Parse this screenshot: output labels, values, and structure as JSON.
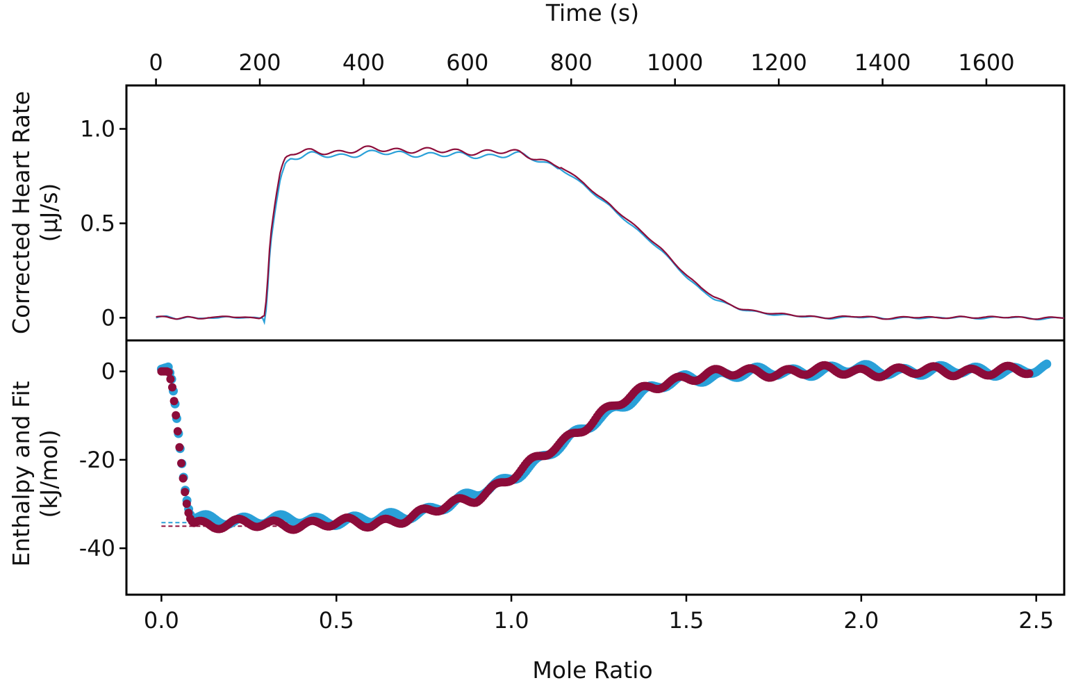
{
  "colors": {
    "series_a": "#2aa0d8",
    "series_b": "#8c0c3a",
    "axis": "#000000"
  },
  "chart_data": [
    {
      "type": "line",
      "panel": "top",
      "xlabel": "Time (s)",
      "ylabel": "Corrected Heart Rate",
      "ylabel_unit": "(µJ/s)",
      "x_axis_position": "top",
      "xlim": [
        -57,
        1750
      ],
      "ylim": [
        -0.12,
        1.23
      ],
      "xticks": [
        0,
        200,
        400,
        600,
        800,
        1000,
        1200,
        1400,
        1600
      ],
      "xtick_labels": [
        "0",
        "200",
        "400",
        "600",
        "800",
        "1000",
        "1200",
        "1400",
        "1600"
      ],
      "yticks": [
        0,
        0.5,
        1.0
      ],
      "ytick_labels": [
        "0",
        "0.5",
        "1.0"
      ],
      "grid": false,
      "series": [
        {
          "color": "#2aa0d8",
          "x": [
            0,
            20,
            40,
            60,
            80,
            100,
            120,
            140,
            160,
            180,
            200,
            205,
            210,
            215,
            220,
            230,
            240,
            250,
            260,
            280,
            300,
            350,
            400,
            450,
            500,
            550,
            600,
            650,
            700,
            730,
            750,
            775,
            800,
            825,
            850,
            875,
            900,
            925,
            950,
            975,
            1000,
            1025,
            1050,
            1075,
            1100,
            1125,
            1150,
            1175,
            1200,
            1250,
            1300,
            1350,
            1400,
            1450,
            1500,
            1550,
            1600,
            1650,
            1700,
            1750
          ],
          "y": [
            0,
            0.004,
            -0.006,
            0.002,
            -0.004,
            0.006,
            -0.002,
            0.004,
            0,
            -0.004,
            -0.002,
            0.003,
            -0.028,
            0.15,
            0.38,
            0.58,
            0.74,
            0.82,
            0.85,
            0.85,
            0.86,
            0.86,
            0.87,
            0.87,
            0.87,
            0.86,
            0.86,
            0.86,
            0.86,
            0.84,
            0.82,
            0.8,
            0.75,
            0.7,
            0.64,
            0.59,
            0.53,
            0.47,
            0.41,
            0.35,
            0.28,
            0.21,
            0.15,
            0.1,
            0.07,
            0.045,
            0.035,
            0.025,
            0.015,
            0.005,
            0,
            0.004,
            -0.004,
            0.002,
            -0.004,
            0.004,
            -0.002,
            0.002,
            -0.004,
            0
          ]
        },
        {
          "color": "#8c0c3a",
          "x": [
            0,
            20,
            40,
            60,
            80,
            100,
            120,
            140,
            160,
            180,
            200,
            205,
            210,
            215,
            220,
            230,
            240,
            250,
            260,
            280,
            300,
            350,
            400,
            450,
            500,
            550,
            600,
            650,
            700,
            730,
            750,
            775,
            800,
            825,
            850,
            875,
            900,
            925,
            950,
            975,
            1000,
            1025,
            1050,
            1075,
            1100,
            1125,
            1150,
            1175,
            1200,
            1250,
            1300,
            1350,
            1400,
            1450,
            1500,
            1550,
            1600,
            1650,
            1700,
            1750
          ],
          "y": [
            0,
            0.002,
            -0.004,
            0.004,
            -0.002,
            0.004,
            0,
            0.006,
            0.002,
            -0.002,
            0,
            0.012,
            0.02,
            0.2,
            0.42,
            0.62,
            0.78,
            0.85,
            0.87,
            0.87,
            0.88,
            0.88,
            0.89,
            0.89,
            0.89,
            0.88,
            0.88,
            0.88,
            0.87,
            0.85,
            0.83,
            0.81,
            0.76,
            0.71,
            0.65,
            0.6,
            0.54,
            0.48,
            0.42,
            0.36,
            0.29,
            0.22,
            0.16,
            0.11,
            0.075,
            0.05,
            0.038,
            0.028,
            0.018,
            0.008,
            0.002,
            0.006,
            -0.002,
            0.004,
            -0.002,
            0.006,
            0,
            0.004,
            -0.002,
            0
          ]
        }
      ]
    },
    {
      "type": "scatter",
      "panel": "bottom",
      "xlabel": "Mole Ratio",
      "ylabel": "Enthalpy and Fit",
      "ylabel_unit": "(kJ/mol)",
      "xlim": [
        -0.1,
        2.58
      ],
      "ylim": [
        -50.5,
        7
      ],
      "xticks": [
        0.0,
        0.5,
        1.0,
        1.5,
        2.0,
        2.5
      ],
      "xtick_labels": [
        "0.0",
        "0.5",
        "1.0",
        "1.5",
        "2.0",
        "2.5"
      ],
      "yticks": [
        0,
        -20,
        -40
      ],
      "ytick_labels": [
        "0",
        "-20",
        "-40"
      ],
      "grid": false,
      "series": [
        {
          "color": "#2aa0d8",
          "x": [
            0.0,
            0.02,
            0.03,
            0.04,
            0.05,
            0.06,
            0.07,
            0.08,
            0.09,
            0.1,
            0.15,
            0.2,
            0.3,
            0.4,
            0.5,
            0.6,
            0.7,
            0.8,
            0.9,
            0.95,
            1.0,
            1.05,
            1.1,
            1.15,
            1.2,
            1.25,
            1.3,
            1.35,
            1.4,
            1.45,
            1.5,
            1.6,
            1.7,
            1.8,
            1.9,
            2.0,
            2.1,
            2.2,
            2.3,
            2.4,
            2.5,
            2.53
          ],
          "y": [
            0.5,
            1.0,
            -2,
            -8,
            -15,
            -22,
            -28,
            -32,
            -33.5,
            -33.2,
            -33.5,
            -33.4,
            -33.8,
            -33.6,
            -33.6,
            -33.7,
            -32.5,
            -30.5,
            -28,
            -26,
            -23.8,
            -21.5,
            -19,
            -16.5,
            -13.5,
            -10.5,
            -8,
            -6,
            -4.2,
            -2.8,
            -1.6,
            -0.8,
            -0.3,
            -0.1,
            0.3,
            0.4,
            0.2,
            0.1,
            0.1,
            0.2,
            0.2,
            0.5
          ]
        },
        {
          "color": "#8c0c3a",
          "x": [
            0.0,
            0.02,
            0.03,
            0.04,
            0.05,
            0.06,
            0.07,
            0.08,
            0.09,
            0.1,
            0.15,
            0.2,
            0.3,
            0.4,
            0.5,
            0.6,
            0.7,
            0.8,
            0.9,
            0.95,
            1.0,
            1.05,
            1.1,
            1.15,
            1.2,
            1.25,
            1.3,
            1.35,
            1.4,
            1.45,
            1.5,
            1.6,
            1.7,
            1.8,
            1.9,
            2.0,
            2.1,
            2.2,
            2.3,
            2.4,
            2.48
          ],
          "y": [
            0,
            0,
            -3,
            -9,
            -16,
            -23,
            -29,
            -33,
            -34.2,
            -34.2,
            -34.6,
            -34.5,
            -34.7,
            -34.5,
            -34.3,
            -34.5,
            -33.0,
            -31.0,
            -28.5,
            -26.2,
            -23.8,
            -21.3,
            -18.6,
            -15.8,
            -12.8,
            -9.9,
            -7.5,
            -5.5,
            -3.6,
            -2.3,
            -1.2,
            -0.5,
            -0.2,
            -0.1,
            0.1,
            0.0,
            -0.1,
            0.0,
            0.1,
            0.0,
            0.0
          ]
        }
      ],
      "fit_baselines": [
        {
          "color": "#2aa0d8",
          "x": [
            0.0,
            0.38
          ],
          "y": [
            -34.2,
            -34.2
          ]
        },
        {
          "color": "#8c0c3a",
          "x": [
            0.0,
            0.38
          ],
          "y": [
            -35.0,
            -35.0
          ]
        }
      ]
    }
  ]
}
